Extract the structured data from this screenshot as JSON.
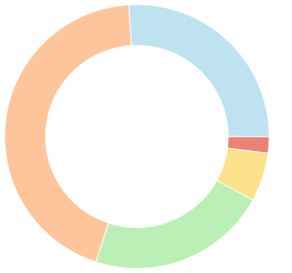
{
  "chart_data": {
    "type": "donut",
    "values": [
      26,
      2,
      6,
      22,
      44
    ],
    "colors": [
      "#bfe2f0",
      "#ec8275",
      "#fde28c",
      "#bcefb6",
      "#fec59b"
    ]
  }
}
